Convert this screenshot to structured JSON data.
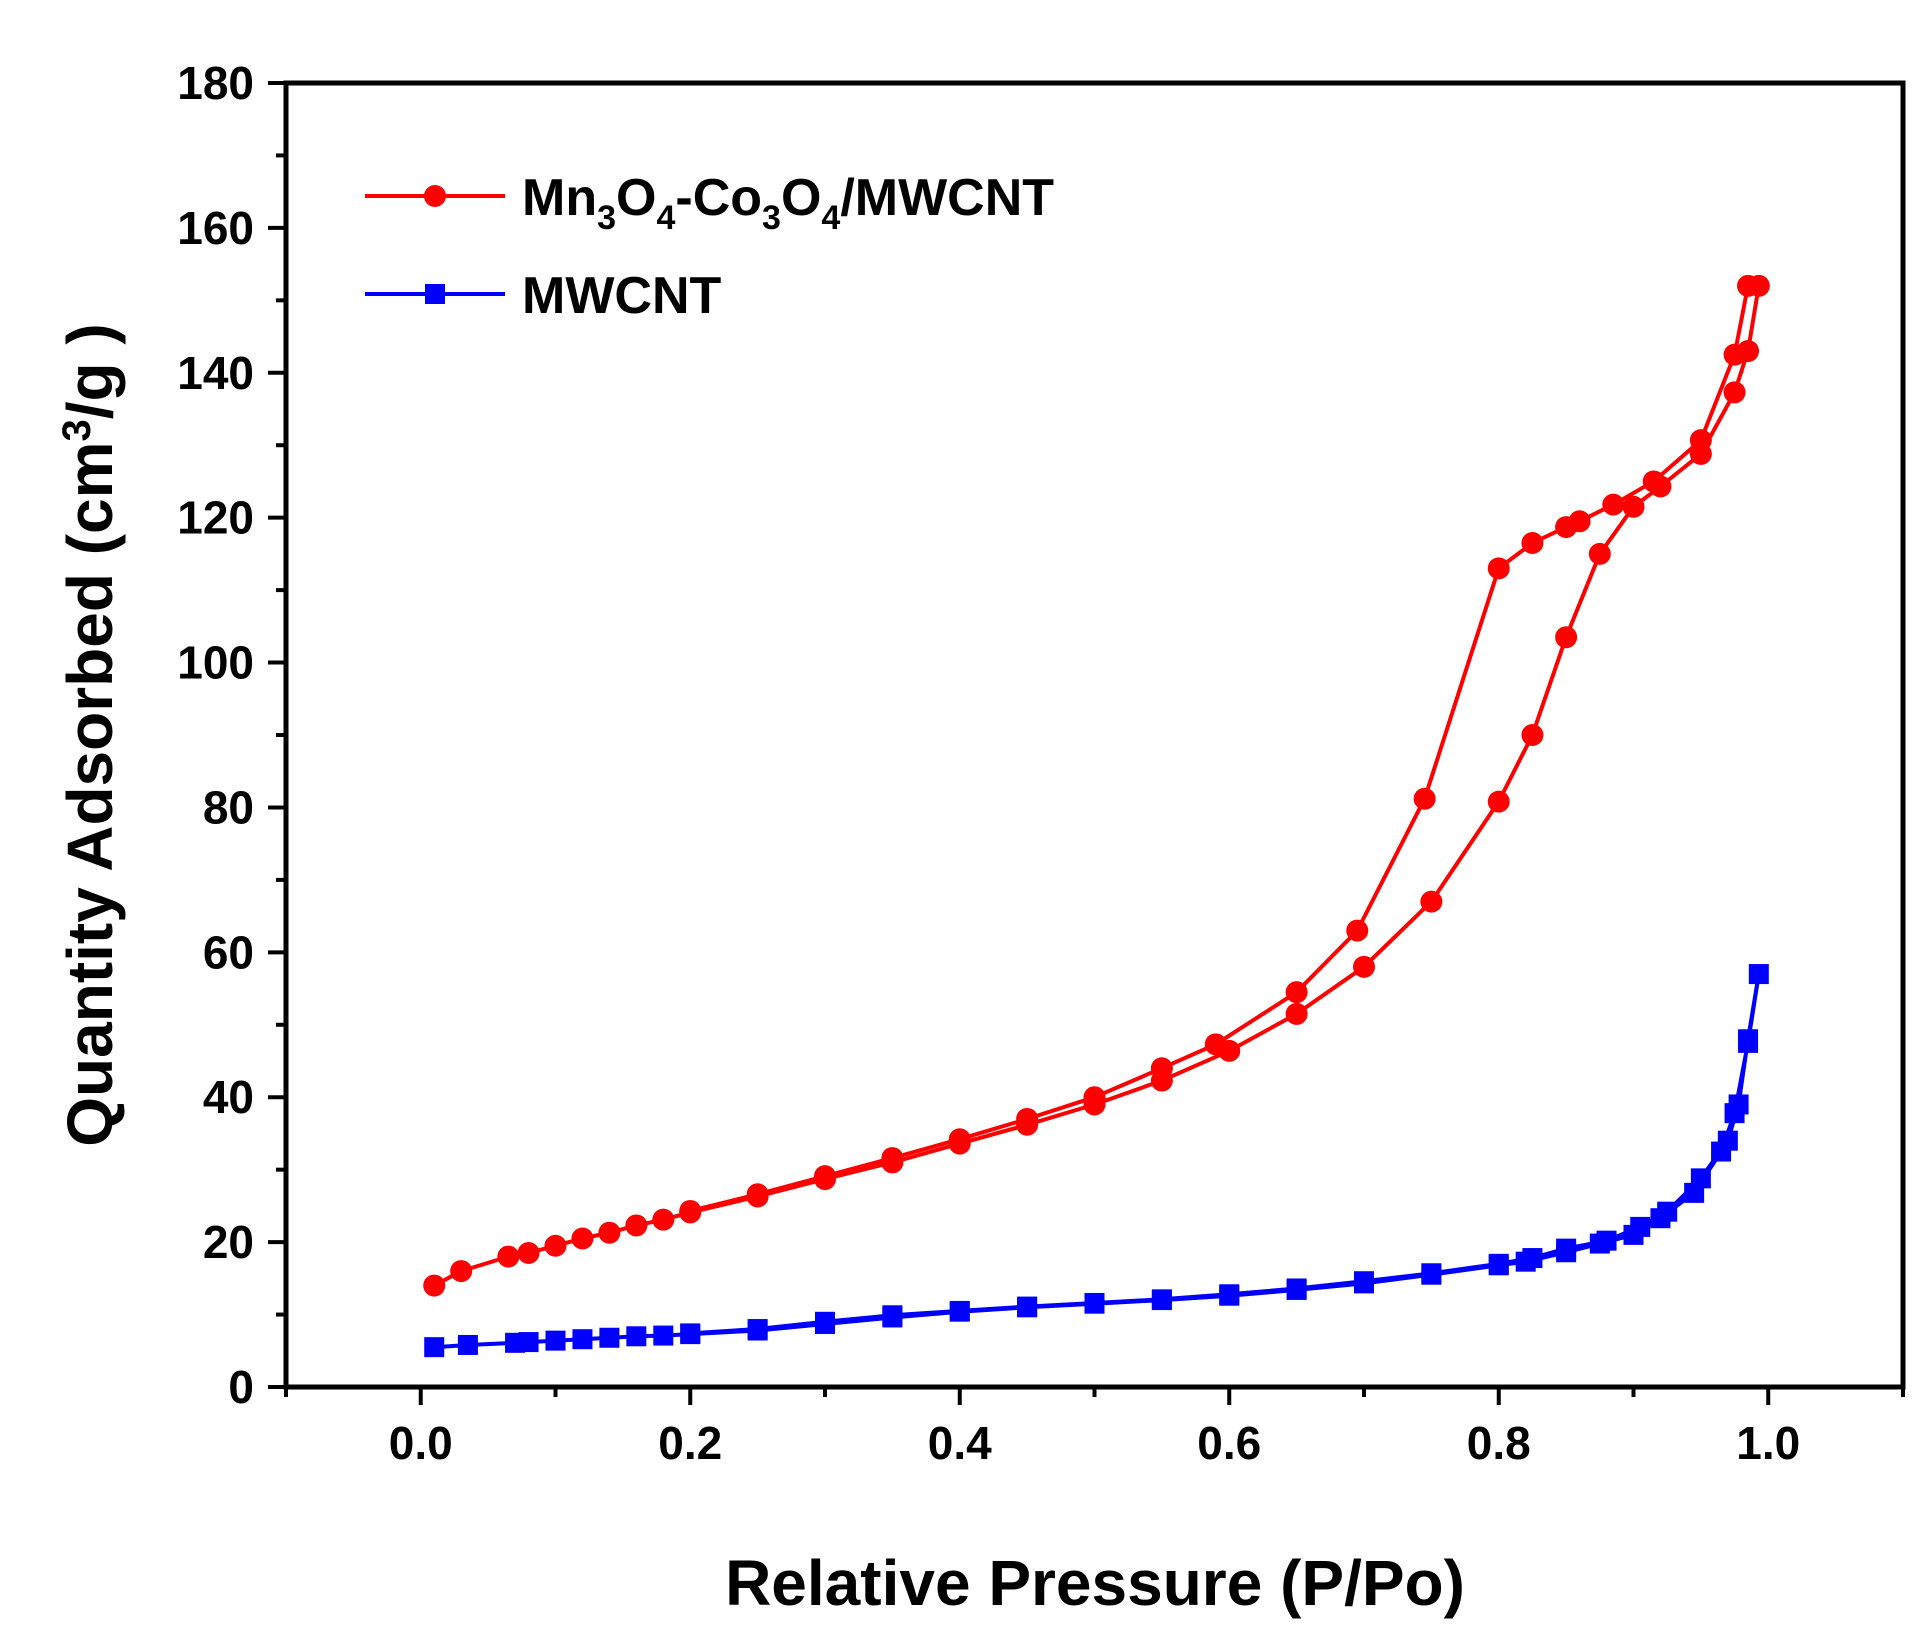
{
  "chart_data": {
    "type": "line",
    "title": "",
    "xlabel": "Relative Pressure (P/Po)",
    "ylabel_parts": [
      "Quantity Adsorbed (cm",
      "3",
      "/g )"
    ],
    "xlim": [
      -0.1,
      1.1
    ],
    "ylim": [
      0,
      180
    ],
    "x_ticks": [
      "0.0",
      "0.2",
      "0.4",
      "0.6",
      "0.8",
      "1.0"
    ],
    "x_tick_values": [
      0.0,
      0.2,
      0.4,
      0.6,
      0.8,
      1.0
    ],
    "y_ticks": [
      "0",
      "20",
      "40",
      "60",
      "80",
      "100",
      "120",
      "140",
      "160",
      "180"
    ],
    "y_tick_values": [
      0,
      20,
      40,
      60,
      80,
      100,
      120,
      140,
      160,
      180
    ],
    "legend_position": "top-left",
    "series": [
      {
        "name": "Mn3O4-Co3O4/MWCNT",
        "legend_parts": [
          {
            "t": "Mn",
            "sub": false
          },
          {
            "t": "3",
            "sub": true
          },
          {
            "t": "O",
            "sub": false
          },
          {
            "t": "4",
            "sub": true
          },
          {
            "t": "-Co",
            "sub": false
          },
          {
            "t": "3",
            "sub": true
          },
          {
            "t": "O",
            "sub": false
          },
          {
            "t": "4",
            "sub": true
          },
          {
            "t": "/MWCNT",
            "sub": false
          }
        ],
        "color": "#ff0000",
        "marker": "circle",
        "x": [
          0.01,
          0.03,
          0.065,
          0.08,
          0.1,
          0.12,
          0.14,
          0.16,
          0.18,
          0.2,
          0.25,
          0.3,
          0.35,
          0.4,
          0.45,
          0.5,
          0.55,
          0.6,
          0.65,
          0.7,
          0.75,
          0.8,
          0.825,
          0.85,
          0.875,
          0.9,
          0.92,
          0.95,
          0.975,
          0.985,
          0.993,
          0.985,
          0.975,
          0.95,
          0.915,
          0.885,
          0.86,
          0.85,
          0.825,
          0.8,
          0.745,
          0.695,
          0.65,
          0.59,
          0.55,
          0.5,
          0.45,
          0.4,
          0.35,
          0.3,
          0.25,
          0.2
        ],
        "y": [
          14,
          16,
          18,
          18.5,
          19.5,
          20.5,
          21.3,
          22.3,
          23.1,
          24.1,
          26.3,
          28.7,
          31,
          33.6,
          36.2,
          39,
          42.3,
          46.4,
          51.5,
          58,
          67,
          80.8,
          90,
          103.5,
          115,
          121.5,
          124.3,
          128.8,
          137.3,
          143,
          152,
          152,
          142.5,
          130.7,
          125,
          121.8,
          119.5,
          118.7,
          116.5,
          113,
          81.2,
          63,
          54.5,
          47.3,
          44,
          40,
          37,
          34.2,
          31.6,
          29.1,
          26.6,
          24.3
        ]
      },
      {
        "name": "MWCNT",
        "legend_parts": [
          {
            "t": "MWCNT",
            "sub": false
          }
        ],
        "color": "#0000ff",
        "marker": "square",
        "x": [
          0.01,
          0.035,
          0.07,
          0.08,
          0.1,
          0.12,
          0.14,
          0.16,
          0.18,
          0.2,
          0.25,
          0.3,
          0.35,
          0.4,
          0.45,
          0.5,
          0.55,
          0.6,
          0.65,
          0.7,
          0.75,
          0.8,
          0.82,
          0.85,
          0.875,
          0.9,
          0.92,
          0.945,
          0.965,
          0.975,
          0.985,
          0.993,
          0.985,
          0.978,
          0.97,
          0.95,
          0.925,
          0.905,
          0.88,
          0.85,
          0.825,
          0.8,
          0.75,
          0.7,
          0.65,
          0.6,
          0.55,
          0.5,
          0.45,
          0.4,
          0.35,
          0.3,
          0.25,
          0.2
        ],
        "y": [
          5.5,
          5.8,
          6.1,
          6.2,
          6.4,
          6.6,
          6.8,
          7,
          7.1,
          7.3,
          7.8,
          8.7,
          9.6,
          10.4,
          11,
          11.5,
          12,
          12.6,
          13.4,
          14.3,
          15.5,
          16.8,
          17.3,
          18.6,
          19.8,
          21,
          23.3,
          26.8,
          32.5,
          37.8,
          47.5,
          57,
          48,
          39,
          34,
          28.8,
          24.2,
          22.1,
          20.2,
          19.1,
          17.8,
          17,
          15.7,
          14.6,
          13.6,
          12.8,
          12.1,
          11.6,
          11.1,
          10.5,
          9.9,
          9.0,
          8.0,
          7.4
        ]
      }
    ]
  }
}
